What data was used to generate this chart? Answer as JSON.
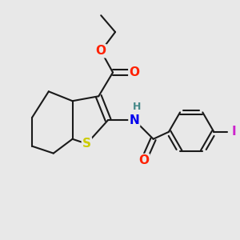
{
  "bg_color": "#e8e8e8",
  "bond_color": "#1a1a1a",
  "bond_width": 1.5,
  "atom_colors": {
    "O": "#ff2000",
    "N": "#0000ee",
    "S": "#cccc00",
    "I": "#cc22cc",
    "H": "#448888",
    "C": "#1a1a1a"
  }
}
